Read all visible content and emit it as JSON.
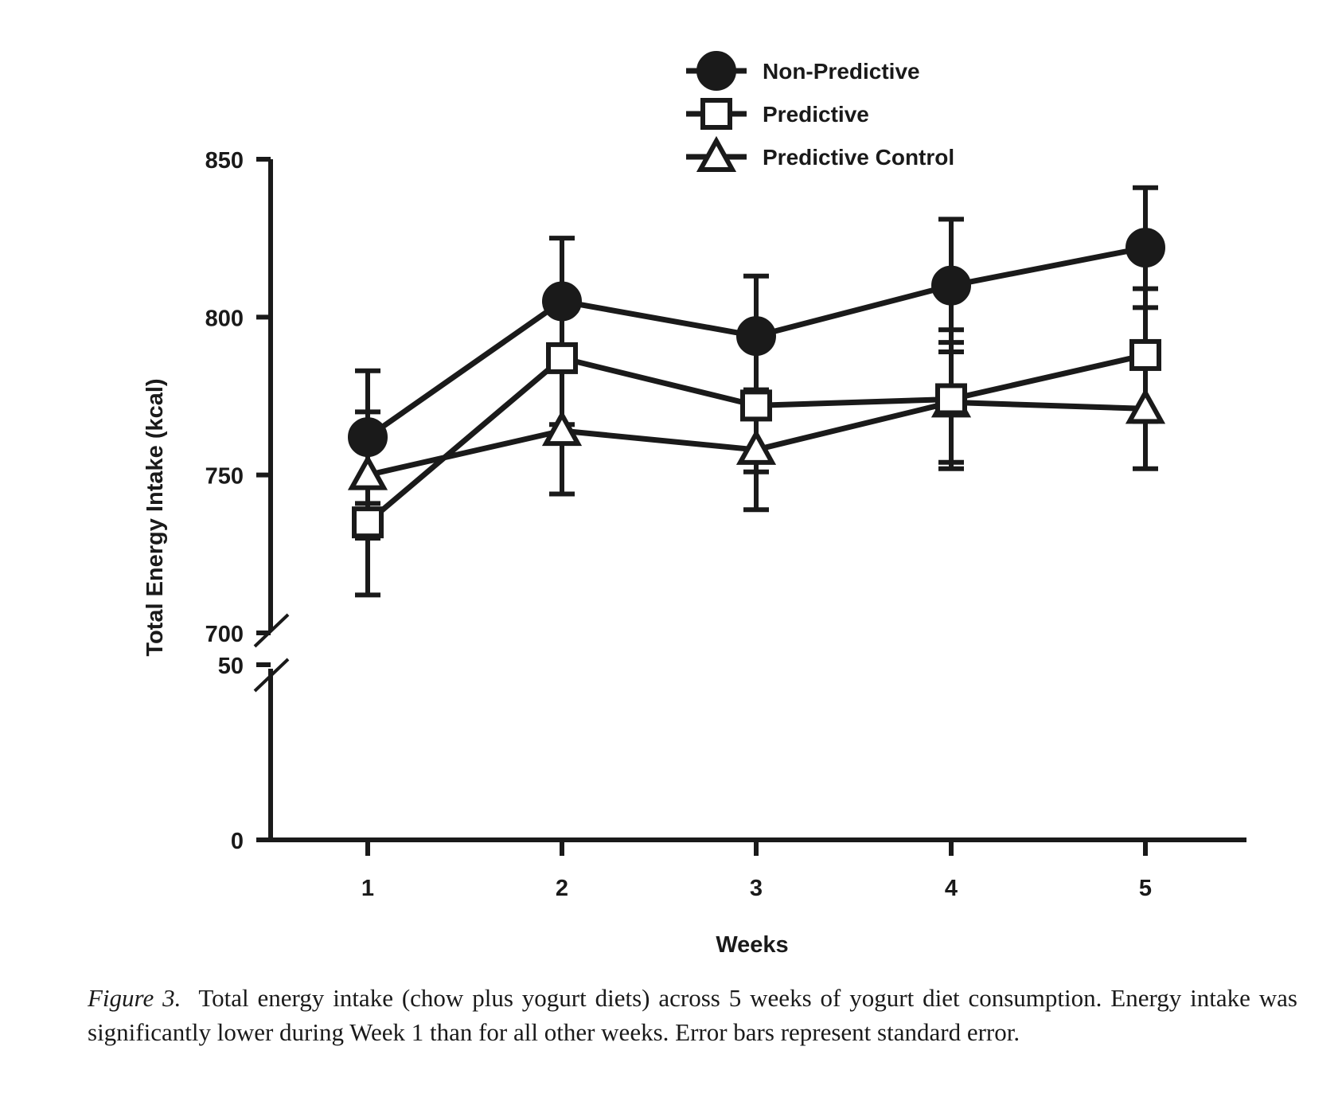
{
  "chart_data": {
    "type": "line",
    "title": "",
    "xlabel": "Weeks",
    "ylabel": "Total Energy Intake (kcal)",
    "x": [
      1,
      2,
      3,
      4,
      5
    ],
    "x_tick_labels": [
      "1",
      "2",
      "3",
      "4",
      "5"
    ],
    "y_axis_break": true,
    "y_segments": [
      {
        "range": [
          0,
          50
        ],
        "ticks": [
          0,
          50
        ],
        "tick_labels": [
          "0",
          "50"
        ]
      },
      {
        "range": [
          700,
          850
        ],
        "ticks": [
          700,
          750,
          800,
          850
        ],
        "tick_labels": [
          "700",
          "750",
          "800",
          "850"
        ]
      }
    ],
    "error_bars": "standard error",
    "legend_position": "top-center",
    "grid": false,
    "series": [
      {
        "name": "Non-Predictive",
        "marker": "filled-circle",
        "values": [
          762,
          805,
          794,
          810,
          822
        ],
        "se": [
          21,
          20,
          19,
          21,
          19
        ]
      },
      {
        "name": "Predictive",
        "marker": "open-square",
        "values": [
          735,
          787,
          772,
          774,
          788
        ],
        "se": [
          23,
          21,
          21,
          22,
          21
        ]
      },
      {
        "name": "Predictive Control",
        "marker": "open-triangle",
        "values": [
          750,
          764,
          758,
          773,
          771
        ],
        "se": [
          20,
          20,
          19,
          19,
          19
        ]
      }
    ],
    "colors": {
      "ink": "#1a1a1a",
      "background": "#ffffff"
    }
  },
  "caption": {
    "label": "Figure 3.",
    "text": "Total energy intake (chow plus yogurt diets) across 5 weeks of yogurt diet consumption. Energy intake was significantly lower during Week 1 than for all other weeks. Error bars represent standard error."
  }
}
